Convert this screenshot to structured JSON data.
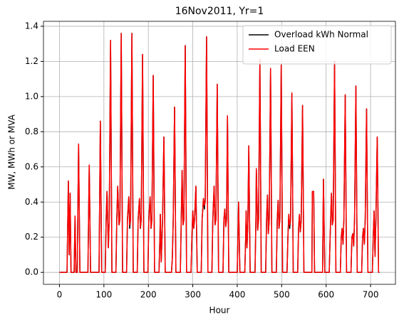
{
  "chart_data": {
    "type": "line",
    "title": "16Nov2011, Yr=1",
    "xlabel": "Hour",
    "ylabel": "MW, MWh or MVA",
    "x": [
      0,
      17,
      20,
      22,
      24,
      26,
      33,
      35,
      37,
      40,
      43,
      46,
      64,
      67,
      70,
      89,
      92,
      95,
      103,
      105,
      107,
      110,
      112,
      115,
      118,
      127,
      129,
      131,
      134,
      136,
      139,
      142,
      151,
      153,
      156,
      158,
      160,
      163,
      166,
      175,
      177,
      180,
      182,
      184,
      187,
      190,
      199,
      201,
      204,
      206,
      208,
      211,
      214,
      224,
      226,
      227,
      229,
      232,
      235,
      238,
      252,
      254,
      256,
      259,
      262,
      272,
      274,
      276,
      278,
      280,
      283,
      286,
      296,
      298,
      300,
      302,
      304,
      307,
      310,
      319,
      321,
      324,
      326,
      328,
      331,
      334,
      343,
      345,
      348,
      350,
      352,
      355,
      358,
      368,
      370,
      372,
      374,
      376,
      378,
      381,
      400,
      403,
      406,
      417,
      419,
      420,
      422,
      424,
      426,
      429,
      440,
      442,
      443,
      446,
      448,
      451,
      454,
      464,
      466,
      468,
      470,
      472,
      475,
      478,
      488,
      490,
      492,
      494,
      496,
      499,
      502,
      512,
      514,
      516,
      518,
      520,
      523,
      526,
      536,
      538,
      540,
      542,
      544,
      547,
      550,
      568,
      569,
      572,
      574,
      592,
      594,
      597,
      607,
      609,
      612,
      614,
      616,
      619,
      622,
      632,
      634,
      636,
      638,
      640,
      643,
      646,
      656,
      658,
      660,
      662,
      664,
      667,
      670,
      680,
      682,
      684,
      686,
      688,
      691,
      694,
      704,
      706,
      708,
      710,
      712,
      715,
      718,
      720
    ],
    "series": [
      {
        "name": "Overload kWh Normal",
        "color": "#000000",
        "values": [
          0,
          0,
          0.52,
          0.1,
          0.45,
          0,
          0,
          0.32,
          0,
          0,
          0.73,
          0,
          0,
          0.61,
          0,
          0,
          0.86,
          0,
          0,
          0.3,
          0.46,
          0.14,
          0.3,
          1.32,
          0,
          0,
          0.3,
          0.49,
          0.27,
          0.3,
          1.36,
          0,
          0,
          0.3,
          0.43,
          0.25,
          0.3,
          1.36,
          0,
          0,
          0.3,
          0.42,
          0.25,
          0.3,
          1.24,
          0,
          0,
          0.3,
          0.43,
          0.25,
          0.3,
          1.12,
          0,
          0,
          0.2,
          0.33,
          0.06,
          0.3,
          0.77,
          0,
          0,
          0.08,
          0.3,
          0.94,
          0,
          0,
          0.3,
          0.58,
          0.27,
          0.3,
          1.29,
          0,
          0,
          0.2,
          0.35,
          0.25,
          0.3,
          0.49,
          0,
          0,
          0.3,
          0.42,
          0.36,
          0.42,
          1.34,
          0,
          0,
          0.3,
          0.49,
          0.27,
          0.3,
          1.07,
          0,
          0,
          0.3,
          0.36,
          0.26,
          0.3,
          0.89,
          0,
          0,
          0.4,
          0,
          0,
          0.2,
          0.35,
          0.14,
          0.3,
          0.72,
          0,
          0,
          0.3,
          0.59,
          0.24,
          0.3,
          1.21,
          0,
          0,
          0.3,
          0.44,
          0.22,
          0.3,
          1.16,
          0,
          0,
          0.3,
          0.41,
          0.25,
          0.3,
          1.18,
          0,
          0,
          0.2,
          0.33,
          0.25,
          0.3,
          1.02,
          0,
          0,
          0.25,
          0.33,
          0.23,
          0.3,
          0.95,
          0,
          0,
          0.46,
          0.46,
          0,
          0,
          0.53,
          0,
          0,
          0.2,
          0.45,
          0.27,
          0.3,
          1.2,
          0,
          0,
          0.2,
          0.25,
          0.16,
          0.3,
          1.01,
          0,
          0,
          0.2,
          0.22,
          0.15,
          0.3,
          1.06,
          0,
          0,
          0.2,
          0.25,
          0.16,
          0.3,
          0.93,
          0,
          0,
          0.2,
          0.35,
          0.09,
          0.3,
          0.77,
          0,
          0
        ]
      },
      {
        "name": "Load EEN",
        "color": "#ff0000",
        "values": [
          0,
          0,
          0.52,
          0.1,
          0.45,
          0,
          0,
          0.32,
          0,
          0,
          0.73,
          0,
          0,
          0.61,
          0,
          0,
          0.86,
          0,
          0,
          0.3,
          0.46,
          0.14,
          0.3,
          1.32,
          0,
          0,
          0.3,
          0.49,
          0.27,
          0.3,
          1.36,
          0,
          0,
          0.3,
          0.43,
          0.27,
          0.3,
          1.36,
          0,
          0,
          0.3,
          0.42,
          0.25,
          0.3,
          1.24,
          0,
          0,
          0.3,
          0.43,
          0.25,
          0.3,
          1.12,
          0,
          0,
          0.2,
          0.33,
          0.06,
          0.3,
          0.77,
          0,
          0,
          0.08,
          0.3,
          0.94,
          0,
          0,
          0.3,
          0.58,
          0.27,
          0.3,
          1.29,
          0,
          0,
          0.2,
          0.35,
          0.25,
          0.3,
          0.49,
          0,
          0,
          0.3,
          0.42,
          0.38,
          0.4,
          1.34,
          0,
          0,
          0.3,
          0.49,
          0.27,
          0.3,
          1.07,
          0,
          0,
          0.3,
          0.36,
          0.26,
          0.3,
          0.89,
          0,
          0,
          0.4,
          0,
          0,
          0.2,
          0.35,
          0.14,
          0.3,
          0.72,
          0,
          0,
          0.3,
          0.59,
          0.24,
          0.3,
          1.21,
          0,
          0,
          0.3,
          0.44,
          0.22,
          0.3,
          1.16,
          0,
          0,
          0.3,
          0.41,
          0.25,
          0.3,
          1.18,
          0,
          0,
          0.2,
          0.33,
          0.27,
          0.3,
          1.02,
          0,
          0,
          0.25,
          0.33,
          0.23,
          0.3,
          0.95,
          0,
          0,
          0.46,
          0.46,
          0,
          0,
          0.53,
          0,
          0,
          0.2,
          0.45,
          0.27,
          0.3,
          1.2,
          0,
          0,
          0.2,
          0.25,
          0.16,
          0.3,
          1.01,
          0,
          0,
          0.2,
          0.22,
          0.15,
          0.3,
          1.06,
          0,
          0,
          0.2,
          0.25,
          0.16,
          0.3,
          0.93,
          0,
          0,
          0.2,
          0.35,
          0.09,
          0.3,
          0.77,
          0,
          0
        ]
      }
    ],
    "xlim": [
      -36,
      756
    ],
    "xticks": [
      0,
      100,
      200,
      300,
      400,
      500,
      600,
      700
    ],
    "ylim": [
      -0.068,
      1.428
    ],
    "yticks": [
      {
        "value": 0,
        "label": "0.0"
      },
      0.2,
      0.4,
      0.6,
      0.8,
      {
        "value": 1,
        "label": "1.0"
      },
      1.2,
      1.4
    ],
    "grid": true,
    "legend": "upper right"
  }
}
